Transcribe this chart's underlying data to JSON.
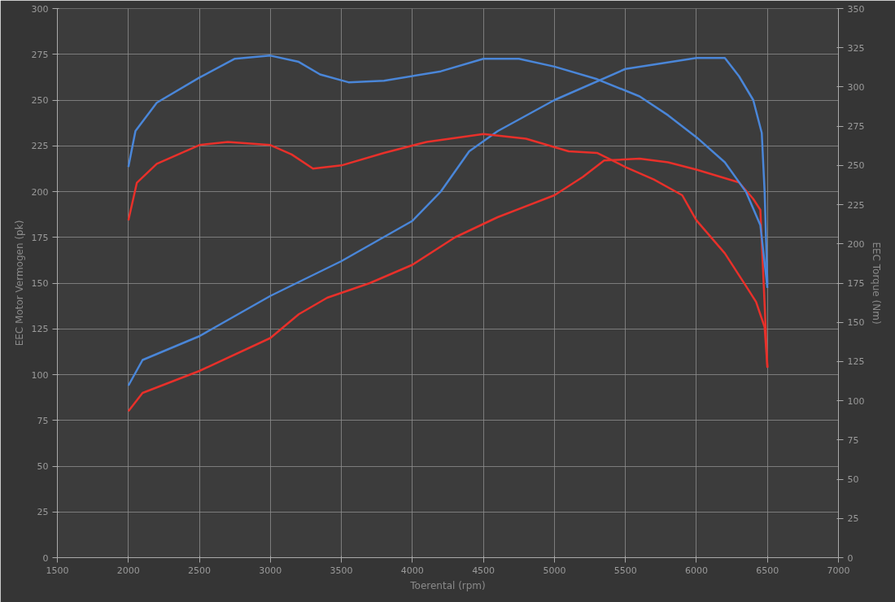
{
  "chart_data": {
    "type": "line",
    "xlabel": "Toerental (rpm)",
    "ylabel": "EEC Motor Vermogen (pk)",
    "y2label": "EEC Torque (Nm)",
    "xlim": [
      1500,
      7000
    ],
    "xticks": [
      1500,
      2000,
      2500,
      3000,
      3500,
      4000,
      4500,
      5000,
      5500,
      6000,
      6500,
      7000
    ],
    "ylim": [
      0,
      300
    ],
    "yticks": [
      0,
      25,
      50,
      75,
      100,
      125,
      150,
      175,
      200,
      225,
      250,
      275,
      300
    ],
    "y2lim": [
      0,
      350
    ],
    "y2ticks": [
      0,
      25,
      50,
      75,
      100,
      125,
      150,
      175,
      200,
      225,
      250,
      275,
      300,
      325,
      350
    ],
    "grid": true,
    "line_style": "solid",
    "series": [
      {
        "color": "#4a86d8",
        "x": [
          2000,
          2100,
          2500,
          3000,
          3500,
          4000,
          4200,
          4400,
          4600,
          5000,
          5500,
          6000,
          6200,
          6300,
          6400,
          6460,
          6480,
          6500
        ],
        "values": [
          94,
          108,
          121,
          143,
          162,
          184,
          200,
          222,
          233,
          250,
          267,
          273,
          273,
          263,
          250,
          232,
          200,
          149
        ]
      },
      {
        "color": "#e8302a",
        "x": [
          2000,
          2100,
          2500,
          3000,
          3200,
          3400,
          3700,
          4000,
          4300,
          4600,
          5000,
          5200,
          5350,
          5600,
          5800,
          6000,
          6300,
          6400,
          6450,
          6500
        ],
        "values": [
          80,
          90,
          102,
          120,
          133,
          142,
          150,
          160,
          175,
          186,
          198,
          208,
          217,
          218,
          216,
          212,
          205,
          196,
          190,
          104
        ]
      },
      {
        "color": "#4a86d8",
        "axis": "y2",
        "x": [
          2000,
          2050,
          2200,
          2500,
          2750,
          3000,
          3200,
          3350,
          3550,
          3800,
          4200,
          4500,
          4750,
          5000,
          5300,
          5600,
          5800,
          6000,
          6200,
          6350,
          6450,
          6500
        ],
        "values": [
          249,
          272,
          290,
          306,
          318,
          320,
          316,
          308,
          303,
          304,
          310,
          318,
          318,
          313,
          305,
          294,
          282,
          268,
          252,
          233,
          212,
          172
        ]
      },
      {
        "color": "#e8302a",
        "axis": "y2",
        "x": [
          2000,
          2060,
          2200,
          2500,
          2700,
          3000,
          3150,
          3300,
          3500,
          3800,
          4100,
          4500,
          4800,
          5100,
          5300,
          5500,
          5700,
          5900,
          6000,
          6200,
          6350,
          6420,
          6480,
          6500
        ],
        "values": [
          215,
          239,
          251,
          263,
          265,
          263,
          257,
          248,
          250,
          258,
          265,
          270,
          267,
          259,
          258,
          249,
          241,
          231,
          215,
          194,
          173,
          163,
          147,
          121
        ]
      }
    ]
  }
}
